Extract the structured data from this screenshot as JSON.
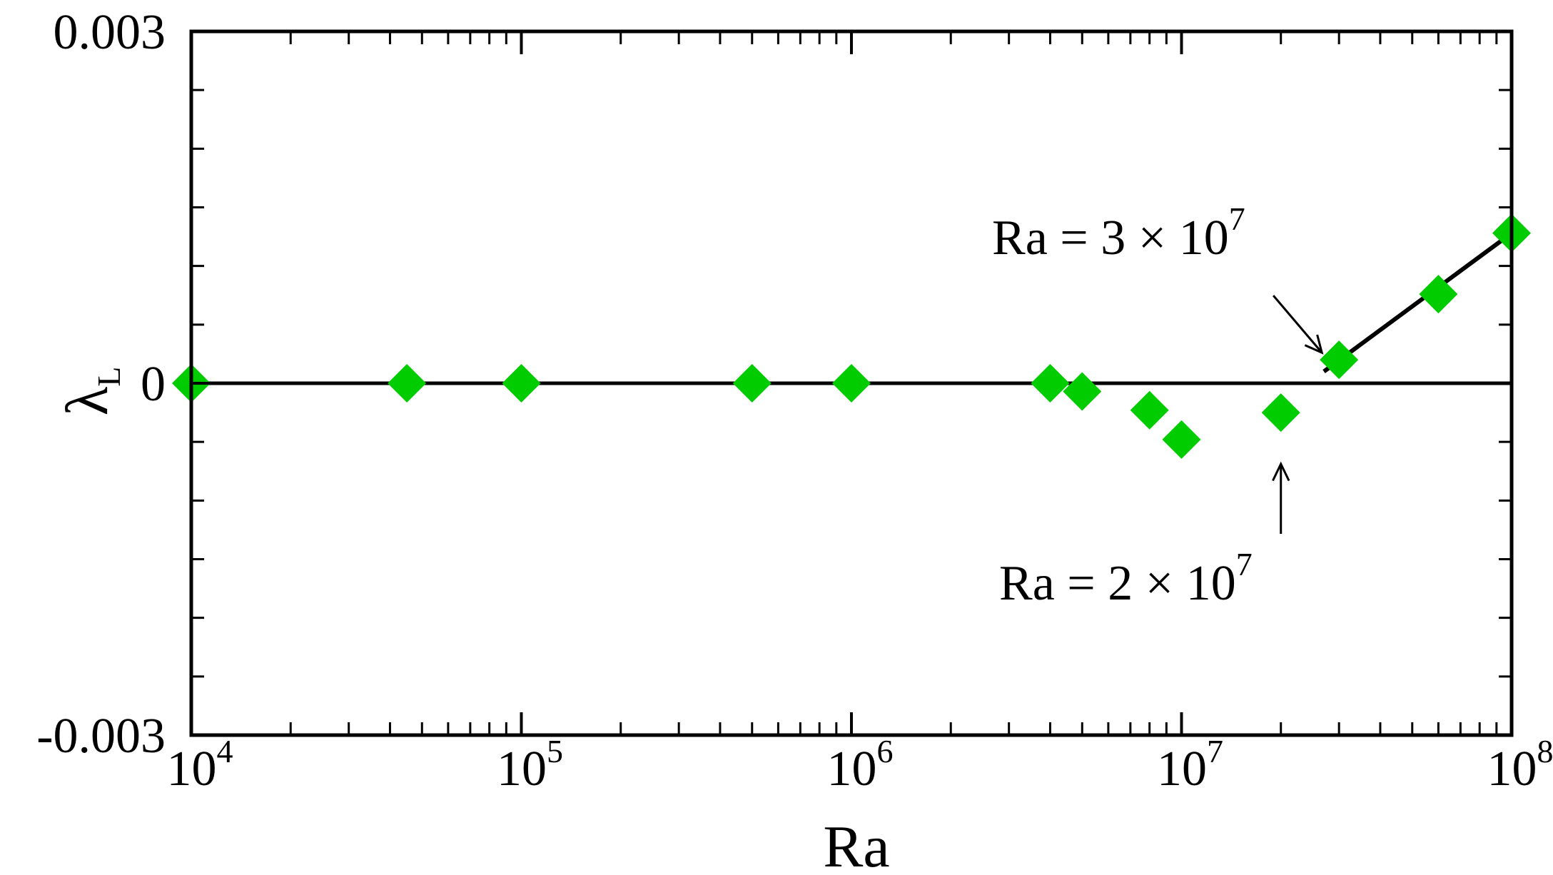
{
  "chart_data": {
    "type": "scatter",
    "xlabel": "Ra",
    "ylabel_main": "λ",
    "ylabel_sub": "L",
    "xscale": "log",
    "xlim": [
      10000,
      100000000
    ],
    "ylim": [
      -0.003,
      0.003
    ],
    "x_ticks": [
      {
        "base": "10",
        "exp": "4",
        "value": 10000
      },
      {
        "base": "10",
        "exp": "5",
        "value": 100000
      },
      {
        "base": "10",
        "exp": "6",
        "value": 1000000
      },
      {
        "base": "10",
        "exp": "7",
        "value": 10000000
      },
      {
        "base": "10",
        "exp": "8",
        "value": 100000000
      }
    ],
    "y_ticks": [
      {
        "label": "0.003",
        "value": 0.003
      },
      {
        "label": "0",
        "value": 0
      },
      {
        "label": "-0.003",
        "value": -0.003
      }
    ],
    "y_minor_step": 0.0005,
    "marker_color": "#00cc00",
    "grid": false,
    "points": [
      {
        "x": 10000,
        "y": 0
      },
      {
        "x": 45000,
        "y": 0
      },
      {
        "x": 100000,
        "y": 0
      },
      {
        "x": 500000,
        "y": 0
      },
      {
        "x": 1000000,
        "y": 0
      },
      {
        "x": 4000000,
        "y": 0
      },
      {
        "x": 5000000,
        "y": -7e-05
      },
      {
        "x": 8000000,
        "y": -0.00023
      },
      {
        "x": 10000000,
        "y": -0.00048
      },
      {
        "x": 20000000,
        "y": -0.00025
      },
      {
        "x": 30000000,
        "y": 0.0002
      },
      {
        "x": 60000000,
        "y": 0.00076
      },
      {
        "x": 100000000,
        "y": 0.00128
      }
    ],
    "zero_line": {
      "y": 0
    },
    "fit_line": {
      "x1": 27000000,
      "y1": 0.0001,
      "x2": 100000000,
      "y2": 0.00128
    },
    "annotations": [
      {
        "id": "ra-3e7",
        "prefix": "Ra = 3 × 10",
        "exp": "7",
        "arrow": "down-right",
        "target_x": 30000000,
        "target_y": 0.0002
      },
      {
        "id": "ra-2e7",
        "prefix": "Ra = 2 × 10",
        "exp": "7",
        "arrow": "up",
        "target_x": 20000000,
        "target_y": -0.00025
      }
    ]
  }
}
